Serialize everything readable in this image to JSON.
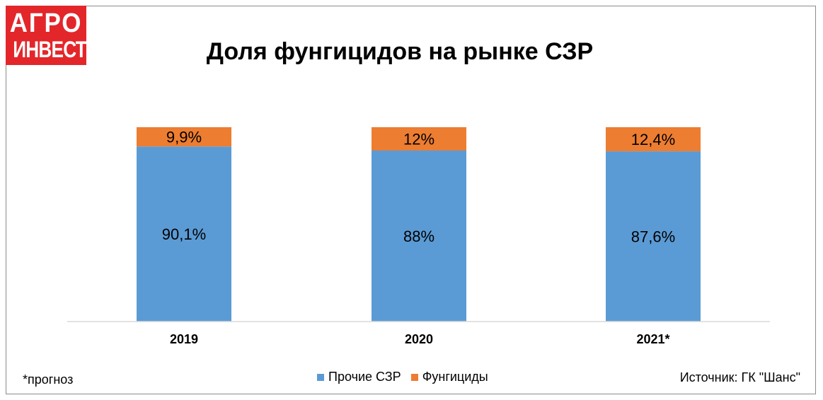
{
  "logo": {
    "line1": "АГРО",
    "line2": "ИНВЕСТОР"
  },
  "note": "*прогноз",
  "source": "Источник: ГК \"Шанс\"",
  "colors": {
    "other": "#5b9bd5",
    "fungicides": "#ed7d31",
    "logo_bg": "#e3262a"
  },
  "chart_data": {
    "type": "bar",
    "stacked": true,
    "title": "Доля фунгицидов на рынке СЗР",
    "categories": [
      "2019",
      "2020",
      "2021*"
    ],
    "series": [
      {
        "name": "Прочие СЗР",
        "values": [
          90.1,
          88,
          87.6
        ],
        "labels": [
          "90,1%",
          "88%",
          "87,6%"
        ]
      },
      {
        "name": "Фунгициды",
        "values": [
          9.9,
          12,
          12.4
        ],
        "labels": [
          "9,9%",
          "12%",
          "12,4%"
        ]
      }
    ],
    "ylim": [
      0,
      100
    ],
    "legend": "bottom",
    "grid": false
  }
}
